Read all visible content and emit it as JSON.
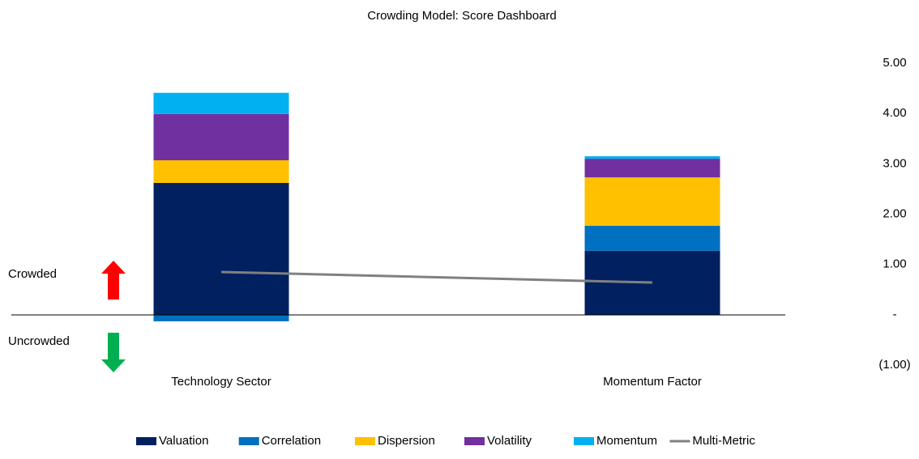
{
  "chart_data": {
    "type": "bar",
    "stacked": true,
    "title": "Crowding Model: Score Dashboard",
    "annotations": [
      "Crowded",
      "Uncrowded"
    ],
    "categories": [
      "Technology Sector",
      "Momentum Factor"
    ],
    "series": [
      {
        "name": "Valuation",
        "color": "#002060",
        "values": [
          2.62,
          1.27
        ]
      },
      {
        "name": "Correlation",
        "color": "#0070c0",
        "values": [
          -0.13,
          0.5
        ]
      },
      {
        "name": "Dispersion",
        "color": "#ffc000",
        "values": [
          0.45,
          0.96
        ]
      },
      {
        "name": "Volatility",
        "color": "#7030a0",
        "values": [
          0.92,
          0.37
        ]
      },
      {
        "name": "Momentum",
        "color": "#00b0f0",
        "values": [
          0.42,
          0.05
        ]
      },
      {
        "name": "Multi-Metric",
        "color": "#808080",
        "type": "line",
        "values": [
          0.85,
          0.64
        ]
      }
    ],
    "ylim": [
      -1,
      5
    ],
    "yticks": [
      {
        "value": -1,
        "label": "(1.00)"
      },
      {
        "value": 0,
        "label": "-"
      },
      {
        "value": 1,
        "label": "1.00"
      },
      {
        "value": 2,
        "label": "2.00"
      },
      {
        "value": 3,
        "label": "3.00"
      },
      {
        "value": 4,
        "label": "4.00"
      },
      {
        "value": 5,
        "label": "5.00"
      }
    ],
    "y_axis_side": "right",
    "grid": false,
    "legend": "bottom"
  }
}
